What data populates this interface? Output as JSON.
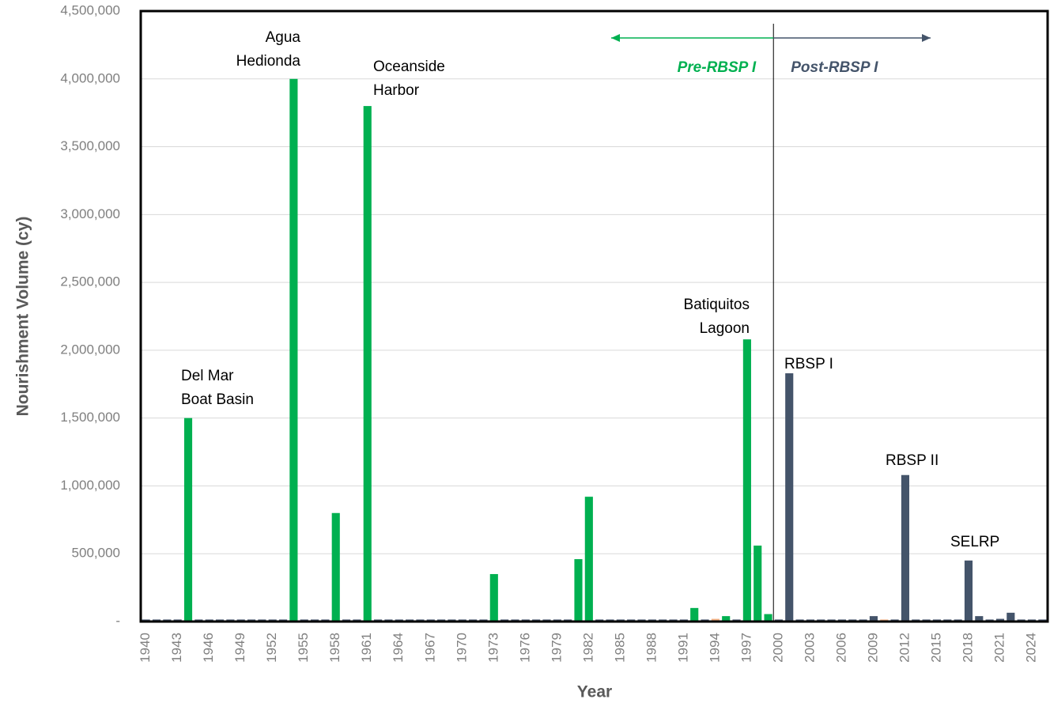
{
  "chart_data": {
    "type": "bar",
    "x_label": "Year",
    "y_label": "Nourishment Volume (cy)",
    "categories": [
      "1940",
      null,
      null,
      "1943",
      null,
      null,
      "1946",
      null,
      null,
      "1949",
      null,
      null,
      "1952",
      null,
      null,
      "1955",
      null,
      null,
      "1958",
      null,
      null,
      "1961",
      null,
      null,
      "1964",
      null,
      null,
      "1967",
      null,
      null,
      "1970",
      null,
      null,
      "1973",
      null,
      null,
      "1976",
      null,
      null,
      "1979",
      null,
      null,
      "1982",
      null,
      null,
      "1985",
      null,
      null,
      "1988",
      null,
      null,
      "1991",
      null,
      null,
      "1994",
      null,
      null,
      "1997",
      null,
      null,
      "2000",
      null,
      null,
      "2003",
      null,
      null,
      "2006",
      null,
      null,
      "2009",
      null,
      null,
      "2012",
      null,
      null,
      "2015",
      null,
      null,
      "2018",
      null,
      null,
      "2021",
      null,
      null,
      "2024",
      null
    ],
    "values": [
      15000,
      15000,
      15000,
      15000,
      1500000,
      15000,
      15000,
      15000,
      15000,
      15000,
      15000,
      15000,
      15000,
      15000,
      4000000,
      15000,
      15000,
      15000,
      800000,
      15000,
      15000,
      3800000,
      15000,
      15000,
      15000,
      15000,
      15000,
      15000,
      15000,
      15000,
      15000,
      15000,
      15000,
      350000,
      15000,
      15000,
      15000,
      15000,
      15000,
      15000,
      15000,
      460000,
      920000,
      15000,
      15000,
      15000,
      15000,
      15000,
      15000,
      15000,
      15000,
      15000,
      100000,
      15000,
      20000,
      40000,
      15000,
      2080000,
      560000,
      55000,
      15000,
      1830000,
      15000,
      15000,
      15000,
      15000,
      15000,
      15000,
      15000,
      40000,
      15000,
      15000,
      1080000,
      15000,
      15000,
      15000,
      15000,
      15000,
      450000,
      40000,
      15000,
      20000,
      65000,
      15000,
      15000,
      15000
    ],
    "colors": [
      "#44546a",
      "#44546a",
      "#44546a",
      "#44546a",
      "#00b050",
      "#44546a",
      "#44546a",
      "#44546a",
      "#44546a",
      "#44546a",
      "#44546a",
      "#44546a",
      "#44546a",
      "#44546a",
      "#00b050",
      "#44546a",
      "#44546a",
      "#44546a",
      "#00b050",
      "#44546a",
      "#44546a",
      "#00b050",
      "#44546a",
      "#44546a",
      "#44546a",
      "#44546a",
      "#44546a",
      "#44546a",
      "#44546a",
      "#44546a",
      "#44546a",
      "#44546a",
      "#44546a",
      "#00b050",
      "#44546a",
      "#44546a",
      "#44546a",
      "#44546a",
      "#44546a",
      "#44546a",
      "#44546a",
      "#00b050",
      "#00b050",
      "#44546a",
      "#44546a",
      "#44546a",
      "#44546a",
      "#44546a",
      "#44546a",
      "#44546a",
      "#44546a",
      "#44546a",
      "#00b050",
      "#44546a",
      "#f4b183",
      "#00b050",
      "#44546a",
      "#00b050",
      "#00b050",
      "#00b050",
      "#44546a",
      "#44546a",
      "#44546a",
      "#44546a",
      "#44546a",
      "#44546a",
      "#44546a",
      "#44546a",
      "#44546a",
      "#44546a",
      "#f4b183",
      "#44546a",
      "#44546a",
      "#44546a",
      "#44546a",
      "#44546a",
      "#44546a",
      "#44546a",
      "#44546a",
      "#44546a",
      "#44546a",
      "#44546a",
      "#44546a",
      "#44546a",
      "#44546a",
      "#44546a"
    ],
    "ylim": [
      0,
      4500000
    ],
    "yticks": [
      {
        "value": 0,
        "label": "-"
      },
      {
        "value": 500000,
        "label": "500,000"
      },
      {
        "value": 1000000,
        "label": "1,000,000"
      },
      {
        "value": 1500000,
        "label": "1,500,000"
      },
      {
        "value": 2000000,
        "label": "2,000,000"
      },
      {
        "value": 2500000,
        "label": "2,500,000"
      },
      {
        "value": 3000000,
        "label": "3,000,000"
      },
      {
        "value": 3500000,
        "label": "3,500,000"
      },
      {
        "value": 4000000,
        "label": "4,000,000"
      },
      {
        "value": 4500000,
        "label": "4,500,000"
      }
    ],
    "grid": true,
    "annotations": [
      {
        "lines": [
          "Del Mar",
          "Boat Basin"
        ]
      },
      {
        "lines": [
          "Agua",
          "Hedionda"
        ]
      },
      {
        "lines": [
          "Oceanside",
          "Harbor"
        ]
      },
      {
        "lines": [
          "Batiquitos",
          "Lagoon"
        ]
      },
      {
        "lines": [
          "RBSP I"
        ]
      },
      {
        "lines": [
          "RBSP II"
        ]
      },
      {
        "lines": [
          "SELRP"
        ]
      }
    ],
    "periods": [
      {
        "label": "Pre-RBSP I",
        "color": "#00b050"
      },
      {
        "label": "Post-RBSP I",
        "color": "#44546a"
      }
    ]
  }
}
